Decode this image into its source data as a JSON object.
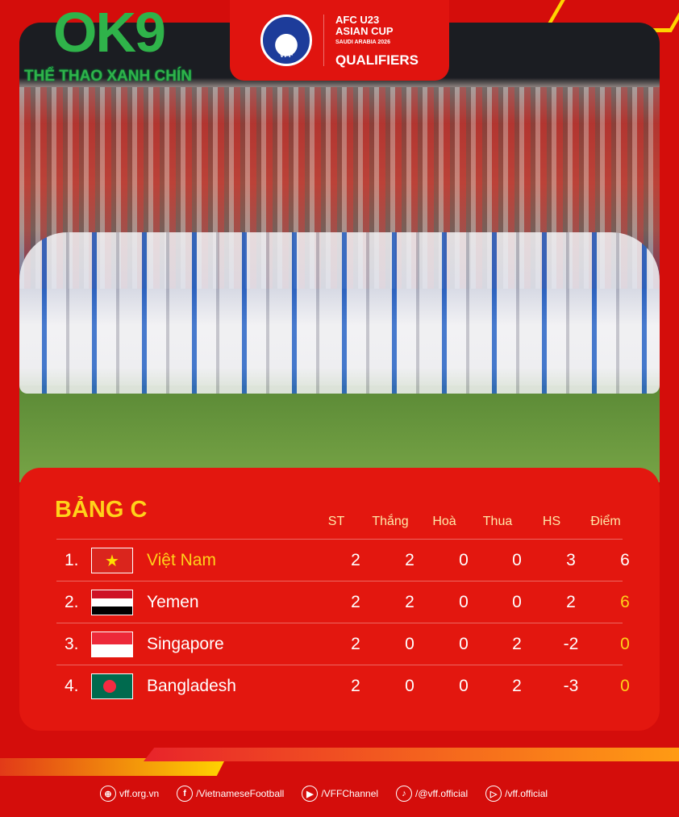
{
  "branding": {
    "watermark": "OK9",
    "watermark_sub": "THỂ THAO XANH CHÍN",
    "federation": "VFF",
    "tournament_line1": "AFC U23",
    "tournament_line2": "ASIAN CUP",
    "tournament_line3": "SAUDI ARABIA 2026",
    "tournament_line4": "QUALIFIERS"
  },
  "standings": {
    "title": "BẢNG C",
    "headers": [
      "ST",
      "Thắng",
      "Hoà",
      "Thua",
      "HS",
      "Điểm"
    ],
    "rows": [
      {
        "rank": "1.",
        "team": "Việt Nam",
        "flag": "vietnam-flag",
        "st": "2",
        "w": "2",
        "d": "0",
        "l": "0",
        "hs": "3",
        "pts": "6"
      },
      {
        "rank": "2.",
        "team": "Yemen",
        "flag": "yemen-flag",
        "st": "2",
        "w": "2",
        "d": "0",
        "l": "0",
        "hs": "2",
        "pts": "6"
      },
      {
        "rank": "3.",
        "team": "Singapore",
        "flag": "singapore-flag",
        "st": "2",
        "w": "0",
        "d": "0",
        "l": "2",
        "hs": "-2",
        "pts": "0"
      },
      {
        "rank": "4.",
        "team": "Bangladesh",
        "flag": "bangladesh-flag",
        "st": "2",
        "w": "0",
        "d": "0",
        "l": "2",
        "hs": "-3",
        "pts": "0"
      }
    ],
    "highlight_color": "#ffd21a"
  },
  "footer": [
    {
      "icon": "globe-icon",
      "label": "vff.org.vn"
    },
    {
      "icon": "facebook-icon",
      "label": "/VietnameseFootball"
    },
    {
      "icon": "youtube-icon",
      "label": "/VFFChannel"
    },
    {
      "icon": "tiktok-icon",
      "label": "/@vff.official"
    },
    {
      "icon": "play-icon",
      "label": "/vff.official"
    }
  ]
}
